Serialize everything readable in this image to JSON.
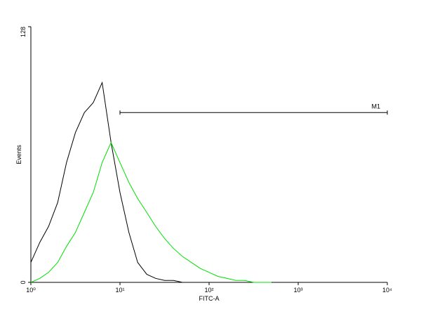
{
  "chart_data": {
    "type": "line",
    "x_label": "FITC-A",
    "y_label": "Events",
    "x": [
      1,
      1.26,
      1.58,
      2,
      2.51,
      3.16,
      3.98,
      5.01,
      6.31,
      7.94,
      10,
      12.6,
      15.8,
      20,
      25.1,
      31.6,
      39.8,
      50.1,
      63.1,
      79.4,
      100,
      126,
      158,
      200,
      251,
      316,
      398,
      501
    ],
    "series": [
      {
        "color": "#000000",
        "values": [
          10,
          20,
          28,
          40,
          60,
          75,
          85,
          90,
          100,
          70,
          45,
          25,
          10,
          4,
          2,
          1,
          1,
          0,
          0,
          0,
          0,
          0,
          0,
          0,
          0,
          0,
          0,
          0
        ]
      },
      {
        "color": "#00e000",
        "values": [
          0,
          2,
          5,
          10,
          18,
          25,
          35,
          45,
          60,
          70,
          60,
          50,
          42,
          35,
          28,
          22,
          17,
          13,
          10,
          7,
          5,
          3,
          2,
          1,
          1,
          0,
          0,
          0
        ]
      }
    ],
    "xlog": true,
    "xlim": [
      1,
      10000
    ],
    "xticks": [
      {
        "value": 1,
        "label": "10⁰"
      },
      {
        "value": 10,
        "label": "10¹"
      },
      {
        "value": 100,
        "label": "10²"
      },
      {
        "value": 1000,
        "label": "10³"
      },
      {
        "value": 10000,
        "label": "10⁴"
      }
    ],
    "ylim": [
      0,
      128
    ],
    "yticks": [
      0,
      128
    ],
    "annotations": [
      {
        "label": "M1",
        "x_start": 10,
        "x_end": 10000,
        "y": 85
      }
    ]
  }
}
